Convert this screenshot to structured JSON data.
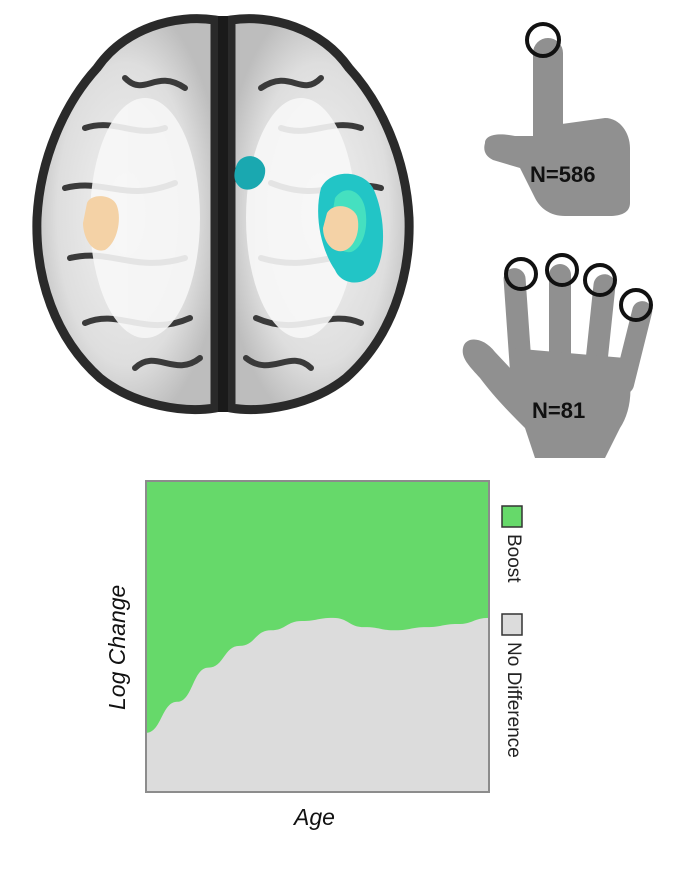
{
  "hands": {
    "single_finger": {
      "label": "N=586",
      "icon": "pointing-hand-icon"
    },
    "four_fingers": {
      "label": "N=81",
      "icon": "open-hand-icon"
    }
  },
  "colors": {
    "boost": "#66d96a",
    "no_difference": "#dcdcdc",
    "hand": "#909090",
    "brain_orange": "#f4d2a6",
    "brain_teal": "#22c5c6"
  },
  "chart_data": {
    "type": "area",
    "xlabel": "Age",
    "ylabel": "Log Change",
    "legend_position": "right",
    "grid": false,
    "series": [
      {
        "name": "Boost",
        "color": "#66d96a"
      },
      {
        "name": "No Difference",
        "color": "#dcdcdc"
      }
    ],
    "no_difference_fraction": [
      0.19,
      0.29,
      0.4,
      0.47,
      0.52,
      0.55,
      0.56,
      0.53,
      0.52,
      0.53,
      0.54,
      0.56
    ]
  }
}
